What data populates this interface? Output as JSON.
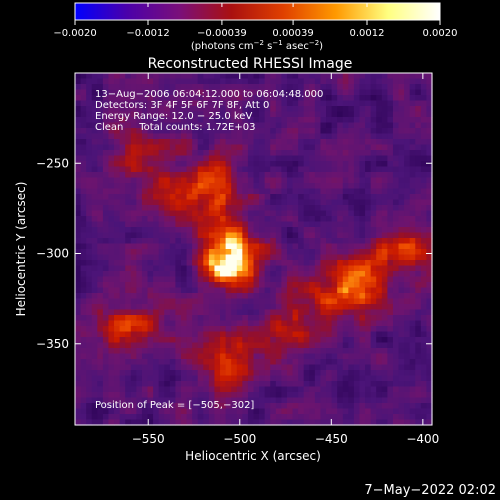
{
  "chart_data": {
    "type": "heatmap",
    "title": "Reconstructed RHESSI Image",
    "xlabel": "Heliocentric X (arcsec)",
    "ylabel": "Heliocentric Y (arcsec)",
    "xlim": [
      -590,
      -395
    ],
    "ylim": [
      -395,
      -200
    ],
    "xticks": [
      -550,
      -500,
      -450,
      -400
    ],
    "xtick_labels": [
      "−550",
      "−500",
      "−450",
      "−400"
    ],
    "yticks": [
      -250,
      -300,
      -350
    ],
    "ytick_labels": [
      "−250",
      "−300",
      "−350"
    ],
    "colorbar": {
      "range": [
        -0.002,
        0.002
      ],
      "ticks": [
        -0.002,
        -0.0012,
        -0.00039,
        0.00039,
        0.0012,
        0.002
      ],
      "tick_labels": [
        "−0.0020",
        "−0.0012",
        "−0.00039",
        "0.00039",
        "0.0012",
        "0.0020"
      ],
      "unit_parts": [
        "(photons cm",
        "−2",
        " s",
        "−1",
        " asec",
        "−2",
        ")"
      ],
      "stops": [
        "#0000ff",
        "#4b00aa",
        "#7a0f7a",
        "#aa1010",
        "#e04000",
        "#ff9900",
        "#ffff80",
        "#ffffff"
      ]
    },
    "annotations": [
      "13−Aug−2006 06:04:12.000 to 06:04:48.000",
      "Detectors: 3F 4F 5F 6F 7F 8F, Att 0",
      "Energy Range: 12.0 − 25.0 keV",
      "Clean     Total counts: 1.72E+03"
    ],
    "peak_text": "Position of Peak = [−505,−302]",
    "peak": [
      -505,
      -302
    ],
    "sources": [
      {
        "x": -505,
        "y": -302,
        "amp": 1.0,
        "sigma": 11
      },
      {
        "x": -520,
        "y": -265,
        "amp": 0.45,
        "sigma": 14
      },
      {
        "x": -555,
        "y": -245,
        "amp": 0.35,
        "sigma": 12
      },
      {
        "x": -440,
        "y": -318,
        "amp": 0.55,
        "sigma": 13
      },
      {
        "x": -410,
        "y": -300,
        "amp": 0.45,
        "sigma": 10
      },
      {
        "x": -560,
        "y": -340,
        "amp": 0.35,
        "sigma": 14
      },
      {
        "x": -505,
        "y": -360,
        "amp": 0.45,
        "sigma": 13
      },
      {
        "x": -470,
        "y": -335,
        "amp": 0.35,
        "sigma": 12
      }
    ]
  },
  "footer": {
    "timestamp": "7−May−2022 02:02"
  }
}
